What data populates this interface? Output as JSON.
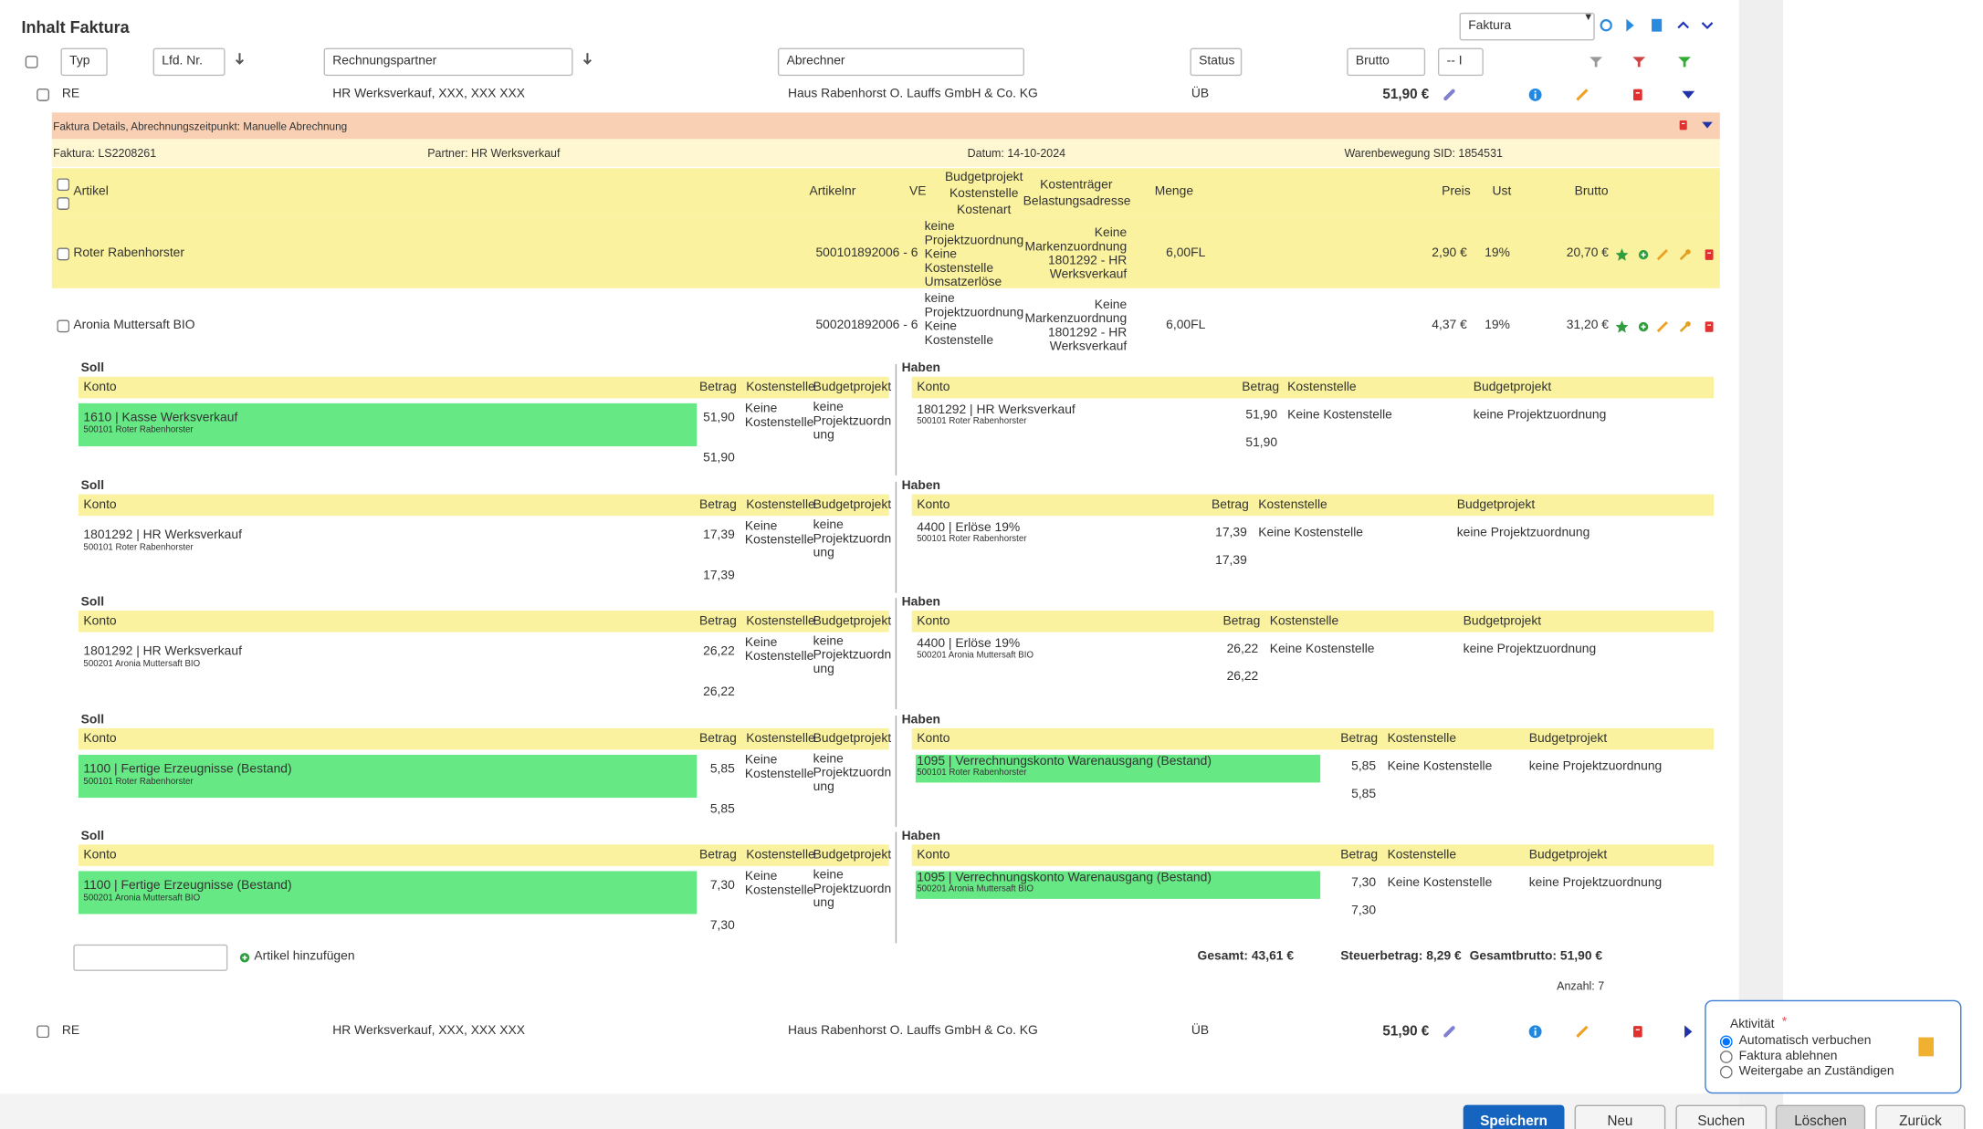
{
  "header": {
    "title": "Inhalt Faktura",
    "view_select": "Faktura"
  },
  "filters": {
    "typ": "Typ",
    "lfd_nr": "Lfd. Nr.",
    "rechnungspartner": "Rechnungspartner",
    "abrechner": "Abrechner",
    "status": "Status",
    "brutto": "Brutto",
    "brutto_op": "-- I"
  },
  "rows": [
    {
      "typ": "RE",
      "partner": "HR Werksverkauf, XXX, XXX XXX",
      "abrechner": "Haus Rabenhorst O. Lauffs GmbH & Co. KG",
      "status": "ÜB",
      "brutto": "51,90 €",
      "expanded": true
    },
    {
      "typ": "RE",
      "partner": "HR Werksverkauf, XXX, XXX XXX",
      "abrechner": "Haus Rabenhorst O. Lauffs GmbH & Co. KG",
      "status": "ÜB",
      "brutto": "51,90 €",
      "expanded": false
    }
  ],
  "details": {
    "bar": "Faktura Details, Abrechnungszeitpunkt: Manuelle Abrechnung",
    "faktura": "Faktura: LS2208261",
    "partner": "Partner: HR Werksverkauf",
    "datum": "Datum: 14-10-2024",
    "sid": "Warenbewegung SID: 1854531"
  },
  "article_header": {
    "artikel": "Artikel",
    "artikelnr": "Artikelnr",
    "ve": "VE",
    "budget": "Budgetprojekt Kostenstelle Kostenart",
    "kostentraeger": "Kostenträger Belastungsadresse",
    "menge": "Menge",
    "preis": "Preis",
    "ust": "Ust",
    "brutto": "Brutto"
  },
  "items": [
    {
      "artikel": "Roter Rabenhorster",
      "artikelnr": "500101",
      "ve": "892006 - 6",
      "budget": "keine Projektzuordnung Keine Kostenstelle Umsatzerlöse",
      "kostentraeger": "Keine Markenzuordnung 1801292 - HR Werksverkauf",
      "menge": "6,00FL",
      "preis": "2,90 €",
      "ust": "19%",
      "brutto": "20,70 €"
    },
    {
      "artikel": "Aronia Muttersaft BIO",
      "artikelnr": "500201",
      "ve": "892006 - 6",
      "budget": "keine Projektzuordnung Keine Kostenstelle",
      "kostentraeger": "Keine Markenzuordnung 1801292 - HR Werksverkauf",
      "menge": "6,00FL",
      "preis": "4,37 €",
      "ust": "19%",
      "brutto": "31,20 €"
    }
  ],
  "booking_labels": {
    "soll": "Soll",
    "haben": "Haben",
    "konto": "Konto",
    "betrag": "Betrag",
    "kostenstelle": "Kostenstelle",
    "budgetprojekt": "Budgetprojekt"
  },
  "bookings": [
    {
      "soll": {
        "konto": "1610 | Kasse Werksverkauf",
        "sub": "500101 Roter Rabenhorster",
        "betrag": "51,90",
        "kostenstelle": "Keine Kostenstelle",
        "budgetprojekt": "keine Projektzuordnung",
        "summe": "51,90",
        "highlight": true
      },
      "haben": {
        "konto": "1801292 | HR Werksverkauf",
        "sub": "500101 Roter Rabenhorster",
        "betrag": "51,90",
        "kostenstelle": "Keine Kostenstelle",
        "budgetprojekt": "keine Projektzuordnung",
        "summe": "51,90",
        "highlight": false
      }
    },
    {
      "soll": {
        "konto": "1801292 | HR Werksverkauf",
        "sub": "500101 Roter Rabenhorster",
        "betrag": "17,39",
        "kostenstelle": "Keine Kostenstelle",
        "budgetprojekt": "keine Projektzuordnung",
        "summe": "17,39",
        "highlight": false
      },
      "haben": {
        "konto": "4400 | Erlöse 19%",
        "sub": "500101 Roter Rabenhorster",
        "betrag": "17,39",
        "kostenstelle": "Keine Kostenstelle",
        "budgetprojekt": "keine Projektzuordnung",
        "summe": "17,39",
        "highlight": false
      }
    },
    {
      "soll": {
        "konto": "1801292 | HR Werksverkauf",
        "sub": "500201 Aronia Muttersaft BIO",
        "betrag": "26,22",
        "kostenstelle": "Keine Kostenstelle",
        "budgetprojekt": "keine Projektzuordnung",
        "summe": "26,22",
        "highlight": false
      },
      "haben": {
        "konto": "4400 | Erlöse 19%",
        "sub": "500201 Aronia Muttersaft BIO",
        "betrag": "26,22",
        "kostenstelle": "Keine Kostenstelle",
        "budgetprojekt": "keine Projektzuordnung",
        "summe": "26,22",
        "highlight": false
      }
    },
    {
      "soll": {
        "konto": "1100 | Fertige Erzeugnisse (Bestand)",
        "sub": "500101 Roter Rabenhorster",
        "betrag": "5,85",
        "kostenstelle": "Keine Kostenstelle",
        "budgetprojekt": "keine Projektzuordnung",
        "summe": "5,85",
        "highlight": true
      },
      "haben": {
        "konto": "1095 | Verrechnungskonto Warenausgang (Bestand)",
        "sub": "500101 Roter Rabenhorster",
        "betrag": "5,85",
        "kostenstelle": "Keine Kostenstelle",
        "budgetprojekt": "keine Projektzuordnung",
        "summe": "5,85",
        "highlight": true
      }
    },
    {
      "soll": {
        "konto": "1100 | Fertige Erzeugnisse (Bestand)",
        "sub": "500201 Aronia Muttersaft BIO",
        "betrag": "7,30",
        "kostenstelle": "Keine Kostenstelle",
        "budgetprojekt": "keine Projektzuordnung",
        "summe": "7,30",
        "highlight": true
      },
      "haben": {
        "konto": "1095 | Verrechnungskonto Warenausgang (Bestand)",
        "sub": "500201 Aronia Muttersaft BIO",
        "betrag": "7,30",
        "kostenstelle": "Keine Kostenstelle",
        "budgetprojekt": "keine Projektzuordnung",
        "summe": "7,30",
        "highlight": true
      }
    }
  ],
  "footer": {
    "add": "Artikel hinzufügen",
    "gesamt": "Gesamt: 43,61 €",
    "steuer": "Steuerbetrag: 8,29 €",
    "gesamtbrutto": "Gesamtbrutto: 51,90 €",
    "anzahl": "Anzahl: 7"
  },
  "activity": {
    "label": "Aktivität",
    "required": "*",
    "options": [
      "Automatisch verbuchen",
      "Faktura ablehnen",
      "Weitergabe an Zuständigen"
    ],
    "selected": 0
  },
  "buttons": [
    "Speichern",
    "Neu",
    "Suchen",
    "Löschen",
    "Zurück"
  ]
}
